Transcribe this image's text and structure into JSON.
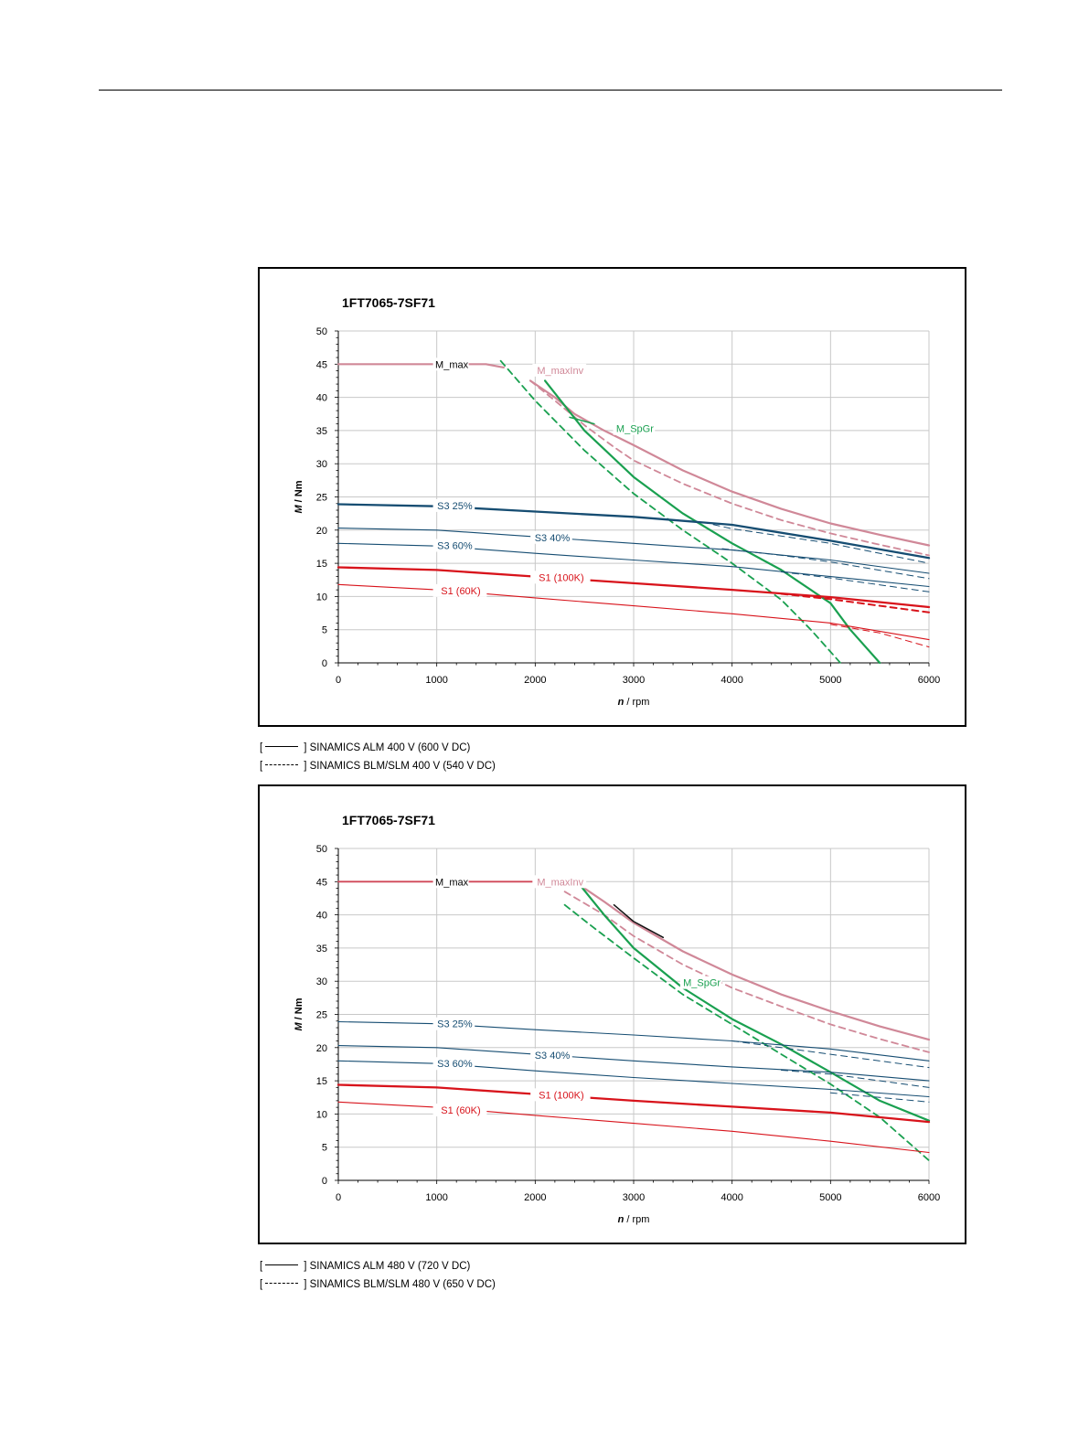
{
  "chart_data": [
    {
      "type": "line",
      "title": "1FT7065-7SF71",
      "xlabel_italic": "n",
      "xlabel_unit": " / rpm",
      "ylabel_italic": "M",
      "ylabel_unit": " / Nm",
      "xlim": [
        0,
        6000
      ],
      "ylim": [
        0,
        50
      ],
      "xticks": [
        0,
        1000,
        2000,
        3000,
        4000,
        5000,
        6000
      ],
      "yticks": [
        0,
        5,
        10,
        15,
        20,
        25,
        30,
        35,
        40,
        45,
        50
      ],
      "grid": true,
      "series": [
        {
          "name": "M_max",
          "color": "#d08898",
          "width": 2.2,
          "dash": false,
          "x": [
            0,
            1500,
            1680
          ],
          "y": [
            45,
            45,
            44.5
          ]
        },
        {
          "name": "M_maxInv",
          "color": "#d08898",
          "width": 2.2,
          "dash": false,
          "x": [
            1950,
            2200,
            2400,
            2700,
            3000,
            3500,
            4000,
            4500,
            5000,
            5500,
            6000
          ],
          "y": [
            42.5,
            40.0,
            37.5,
            35.0,
            32.8,
            29.0,
            25.8,
            23.2,
            21.0,
            19.3,
            17.7
          ]
        },
        {
          "color": "#d08898",
          "width": 1.8,
          "dash": true,
          "x": [
            1950,
            2200,
            2500,
            2800,
            3000,
            3500,
            4000,
            4500,
            5000,
            5500,
            6000
          ],
          "y": [
            42.5,
            39.5,
            35.8,
            32.5,
            30.5,
            27.0,
            24.0,
            21.5,
            19.5,
            17.8,
            16.2
          ]
        },
        {
          "name": "M_SpGr",
          "color": "#1aa050",
          "width": 2.2,
          "dash": false,
          "x": [
            2100,
            2500,
            3000,
            3500,
            4000,
            4500,
            5000,
            5200,
            5500
          ],
          "y": [
            42.5,
            35.0,
            28.0,
            22.5,
            18.0,
            14.0,
            9.0,
            5.0,
            0
          ]
        },
        {
          "color": "#1aa050",
          "width": 1.8,
          "dash": true,
          "x": [
            1650,
            2000,
            2500,
            3000,
            3500,
            4000,
            4500,
            4800,
            5100
          ],
          "y": [
            45.5,
            39.5,
            32.0,
            25.5,
            20.0,
            15.0,
            9.5,
            5.0,
            0
          ]
        },
        {
          "color": "#1aa050",
          "width": 1.5,
          "dash": false,
          "x": [
            2350,
            2600
          ],
          "y": [
            37,
            36
          ]
        },
        {
          "name": "S3 25%",
          "color": "#164d72",
          "width": 2.3,
          "dash": false,
          "x": [
            0,
            1000,
            2000,
            3000,
            4000,
            5000,
            6000
          ],
          "y": [
            23.9,
            23.6,
            22.8,
            22.0,
            20.8,
            18.4,
            15.8
          ]
        },
        {
          "color": "#164d72",
          "width": 1.0,
          "dash": true,
          "x": [
            3700,
            4000,
            5000,
            6000
          ],
          "y": [
            21.2,
            20.2,
            18.0,
            15.0
          ]
        },
        {
          "name": "S3 40%",
          "color": "#164d72",
          "width": 1.1,
          "dash": false,
          "x": [
            0,
            1000,
            2000,
            3000,
            4000,
            5000,
            6000
          ],
          "y": [
            20.3,
            20.0,
            19.0,
            18.0,
            17.0,
            15.5,
            13.5
          ]
        },
        {
          "color": "#164d72",
          "width": 1.0,
          "dash": true,
          "x": [
            3900,
            4500,
            5000,
            6000
          ],
          "y": [
            17.2,
            16.2,
            15.2,
            12.7
          ]
        },
        {
          "name": "S3 60%",
          "color": "#164d72",
          "width": 1.1,
          "dash": false,
          "x": [
            0,
            1000,
            2000,
            3000,
            4000,
            5000,
            6000
          ],
          "y": [
            18.0,
            17.6,
            16.5,
            15.5,
            14.5,
            13.0,
            11.5
          ]
        },
        {
          "color": "#164d72",
          "width": 1.0,
          "dash": true,
          "x": [
            4500,
            5000,
            6000
          ],
          "y": [
            13.7,
            12.8,
            10.7
          ]
        },
        {
          "name": "S1 (100K)",
          "color": "#d8131b",
          "width": 2.3,
          "dash": false,
          "x": [
            0,
            1000,
            2000,
            3000,
            4000,
            5000,
            6000
          ],
          "y": [
            14.4,
            14.0,
            13.0,
            12.0,
            11.0,
            9.9,
            8.4
          ]
        },
        {
          "color": "#d8131b",
          "width": 2.0,
          "dash": true,
          "x": [
            4500,
            5000,
            6000
          ],
          "y": [
            10.4,
            9.6,
            7.6
          ]
        },
        {
          "name": "S1 (60K)",
          "color": "#d8131b",
          "width": 1.1,
          "dash": false,
          "x": [
            0,
            1000,
            2000,
            3000,
            4000,
            5000,
            6000
          ],
          "y": [
            11.8,
            11.0,
            9.8,
            8.6,
            7.4,
            6.0,
            3.5
          ]
        },
        {
          "color": "#d8131b",
          "width": 1.0,
          "dash": true,
          "x": [
            5000,
            5500,
            6000
          ],
          "y": [
            5.8,
            4.5,
            2.4
          ]
        }
      ],
      "annotations": [
        {
          "text": "M_max",
          "x": 990,
          "y": 45,
          "color": "#000000"
        },
        {
          "text": "M_maxInv",
          "x": 2000,
          "y": 44.1,
          "color": "#d08898"
        },
        {
          "text": "M_SpGr",
          "x": 2820,
          "y": 35.3,
          "color": "#1aa050"
        },
        {
          "text": "S3 25%",
          "x": 990,
          "y": 23.7,
          "color": "#164d72"
        },
        {
          "text": "S3 40%",
          "x": 1980,
          "y": 18.9,
          "color": "#164d72"
        },
        {
          "text": "S3 60%",
          "x": 990,
          "y": 17.7,
          "color": "#164d72"
        },
        {
          "text": "S1 (100K)",
          "x": 1980,
          "y": 12.9,
          "color": "#d8131b"
        },
        {
          "text": "S1 (60K)",
          "x": 990,
          "y": 10.9,
          "color": "#d8131b"
        }
      ]
    },
    {
      "type": "line",
      "title": "1FT7065-7SF71",
      "xlabel_italic": "n",
      "xlabel_unit": " / rpm",
      "ylabel_italic": "M",
      "ylabel_unit": " / Nm",
      "xlim": [
        0,
        6000
      ],
      "ylim": [
        0,
        50
      ],
      "xticks": [
        0,
        1000,
        2000,
        3000,
        4000,
        5000,
        6000
      ],
      "yticks": [
        0,
        5,
        10,
        15,
        20,
        25,
        30,
        35,
        40,
        45,
        50
      ],
      "grid": true,
      "series": [
        {
          "name": "M_max",
          "color": "#d04858",
          "width": 1.8,
          "dash": false,
          "x": [
            0,
            2400
          ],
          "y": [
            45,
            45
          ]
        },
        {
          "name": "M_maxInv",
          "color": "#d08898",
          "width": 2.2,
          "dash": false,
          "x": [
            2400,
            2700,
            3000,
            3500,
            4000,
            4500,
            5000,
            5500,
            6000
          ],
          "y": [
            45.0,
            42.0,
            38.8,
            34.5,
            31.0,
            28.0,
            25.5,
            23.2,
            21.2
          ]
        },
        {
          "color": "#d08898",
          "width": 1.8,
          "dash": true,
          "x": [
            2300,
            2700,
            3000,
            3500,
            4000,
            4500,
            5000,
            5500,
            6000
          ],
          "y": [
            43.5,
            40.0,
            36.8,
            32.5,
            29.0,
            26.2,
            23.5,
            21.3,
            19.3
          ]
        },
        {
          "color": "#111111",
          "width": 1.5,
          "dash": false,
          "x": [
            2800,
            3000,
            3300
          ],
          "y": [
            41.5,
            39.0,
            36.6
          ]
        },
        {
          "name": "M_SpGr",
          "color": "#1aa050",
          "width": 2.2,
          "dash": false,
          "x": [
            2400,
            2700,
            3000,
            3500,
            4000,
            4500,
            5000,
            5500,
            6000
          ],
          "y": [
            45.5,
            40.0,
            35.0,
            29.0,
            24.3,
            20.5,
            16.3,
            12.0,
            9.0
          ]
        },
        {
          "color": "#1aa050",
          "width": 1.8,
          "dash": true,
          "x": [
            2300,
            2600,
            3000,
            3500,
            4000,
            4500,
            5000,
            5500,
            6000
          ],
          "y": [
            41.5,
            38.0,
            33.5,
            28.0,
            23.5,
            19.0,
            14.5,
            9.5,
            3.0
          ]
        },
        {
          "name": "S3 25%",
          "color": "#164d72",
          "width": 1.1,
          "dash": false,
          "x": [
            0,
            1000,
            2000,
            3000,
            4000,
            5000,
            6000
          ],
          "y": [
            23.9,
            23.6,
            22.7,
            21.9,
            21.0,
            19.8,
            18.0
          ]
        },
        {
          "color": "#164d72",
          "width": 1.0,
          "dash": true,
          "x": [
            4000,
            5000,
            6000
          ],
          "y": [
            21.0,
            19.0,
            17.0
          ]
        },
        {
          "name": "S3 40%",
          "color": "#164d72",
          "width": 1.1,
          "dash": false,
          "x": [
            0,
            1000,
            2000,
            3000,
            4000,
            5000,
            6000
          ],
          "y": [
            20.3,
            20.0,
            19.0,
            18.0,
            17.1,
            16.3,
            15.0
          ]
        },
        {
          "color": "#164d72",
          "width": 1.0,
          "dash": true,
          "x": [
            4500,
            5000,
            6000
          ],
          "y": [
            16.6,
            16.0,
            14.0
          ]
        },
        {
          "name": "S3 60%",
          "color": "#164d72",
          "width": 1.1,
          "dash": false,
          "x": [
            0,
            1000,
            2000,
            3000,
            4000,
            5000,
            6000
          ],
          "y": [
            18.0,
            17.6,
            16.5,
            15.5,
            14.6,
            13.7,
            12.6
          ]
        },
        {
          "color": "#164d72",
          "width": 1.0,
          "dash": true,
          "x": [
            5000,
            5500,
            6000
          ],
          "y": [
            13.2,
            12.5,
            11.8
          ]
        },
        {
          "name": "S1 (100K)",
          "color": "#d8131b",
          "width": 2.3,
          "dash": false,
          "x": [
            0,
            1000,
            2000,
            3000,
            4000,
            5000,
            6000
          ],
          "y": [
            14.4,
            14.0,
            13.0,
            12.0,
            11.1,
            10.2,
            8.8
          ]
        },
        {
          "name": "S1 (60K)",
          "color": "#d8131b",
          "width": 1.1,
          "dash": false,
          "x": [
            0,
            1000,
            2000,
            3000,
            4000,
            5000,
            6000
          ],
          "y": [
            11.8,
            11.0,
            9.8,
            8.6,
            7.4,
            5.9,
            4.2
          ]
        }
      ],
      "annotations": [
        {
          "text": "M_max",
          "x": 990,
          "y": 45,
          "color": "#000000"
        },
        {
          "text": "M_maxInv",
          "x": 2000,
          "y": 45,
          "color": "#d08898"
        },
        {
          "text": "M_SpGr",
          "x": 3500,
          "y": 29.8,
          "color": "#1aa050"
        },
        {
          "text": "S3 25%",
          "x": 990,
          "y": 23.6,
          "color": "#164d72"
        },
        {
          "text": "S3 40%",
          "x": 1980,
          "y": 18.9,
          "color": "#164d72"
        },
        {
          "text": "S3 60%",
          "x": 990,
          "y": 17.6,
          "color": "#164d72"
        },
        {
          "text": "S1 (100K)",
          "x": 1980,
          "y": 12.9,
          "color": "#d8131b"
        },
        {
          "text": "S1 (60K)",
          "x": 990,
          "y": 10.6,
          "color": "#d8131b"
        }
      ]
    }
  ],
  "legends": [
    {
      "solid_open": "[",
      "solid_label": "]  SINAMICS ALM 400 V (600 V DC)",
      "dashed_open": "[",
      "dashed_label": "]  SINAMICS BLM/SLM 400 V (540 V DC)"
    },
    {
      "solid_open": "[",
      "solid_label": "]  SINAMICS ALM 480 V (720 V DC)",
      "dashed_open": "[",
      "dashed_label": "] SINAMICS BLM/SLM 480 V (650 V DC)"
    }
  ]
}
